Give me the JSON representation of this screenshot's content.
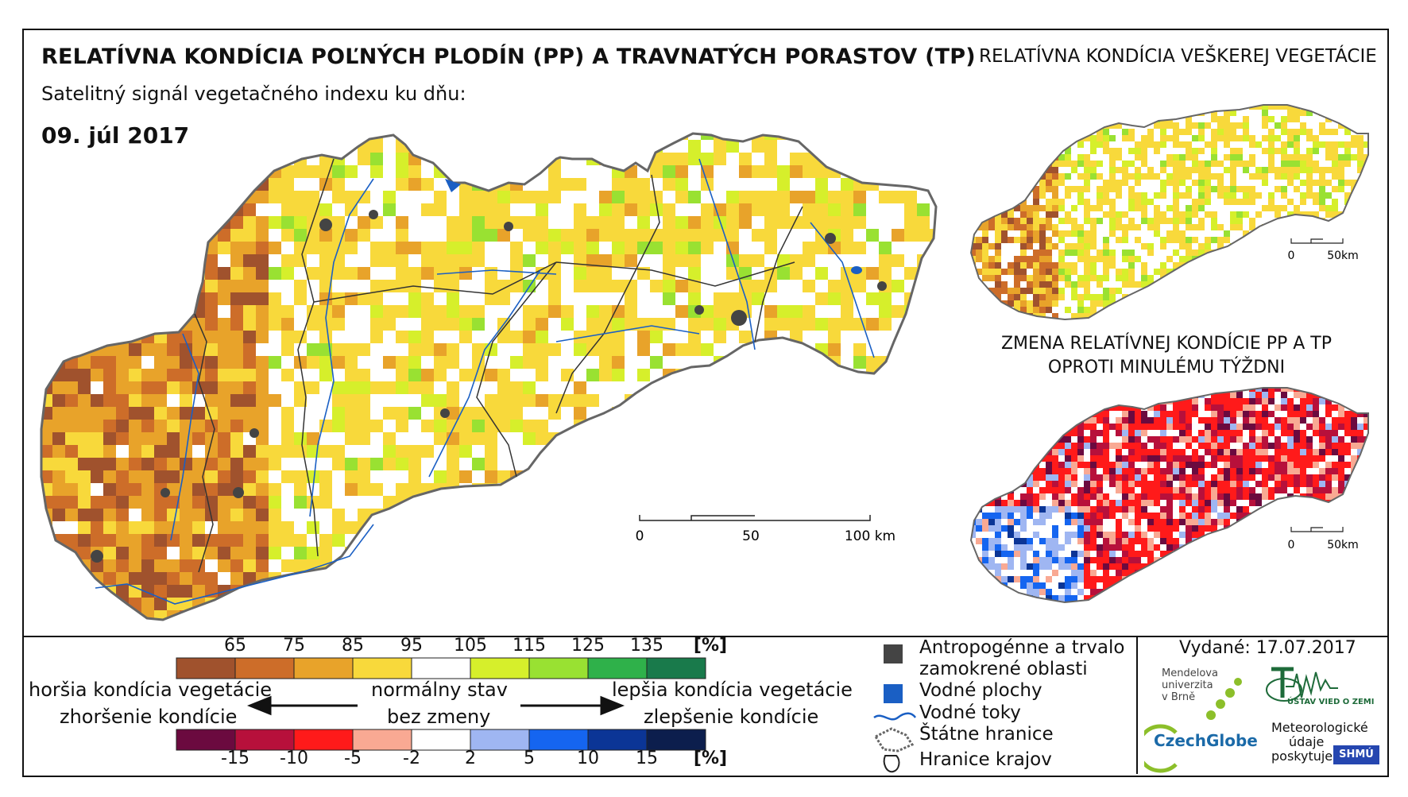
{
  "header": {
    "title": "RELATÍVNA KONDÍCIA POĽNÝCH PLODÍN (PP) A TRAVNATÝCH PORASTOV (TP)",
    "subtitle": "Satelitný signál vegetačného indexu ku dňu:",
    "date": "09. júl 2017"
  },
  "side_panel_top": {
    "title": "RELATÍVNA KONDÍCIA VEŠKEREJ VEGETÁCIE",
    "scale_labels": [
      "0",
      "50km"
    ]
  },
  "side_panel_bottom": {
    "title_line1": "ZMENA RELATÍVNEJ KONDÍCIE PP A TP",
    "title_line2": "OPROTI MINULÉMU TÝŽDNI",
    "scale_labels": [
      "0",
      "50km"
    ]
  },
  "main_scale": {
    "labels": [
      "0",
      "50",
      "100 km"
    ]
  },
  "legend": {
    "unit": "[%]",
    "condition_ticks": [
      "65",
      "75",
      "85",
      "95",
      "105",
      "115",
      "125",
      "135"
    ],
    "condition_colors": [
      "#a0522d",
      "#cd6d29",
      "#e8a32a",
      "#f8d93b",
      "#ffffff",
      "#d6ef2b",
      "#99e132",
      "#2fb14a",
      "#197a4b"
    ],
    "change_ticks": [
      "-15",
      "-10",
      "-5",
      "-2",
      "2",
      "5",
      "10",
      "15"
    ],
    "change_colors": [
      "#6b0a3f",
      "#b7103b",
      "#ff1a1a",
      "#f9a993",
      "#ffffff",
      "#9fb6f2",
      "#1565f0",
      "#0b3596",
      "#0c1e4d"
    ],
    "left_label_1": "horšia kondícia vegetácie",
    "left_label_2": "zhoršenie kondície",
    "center_label_1": "normálny stav",
    "center_label_2": "bez zmeny",
    "right_label_1": "lepšia kondícia vegetácie",
    "right_label_2": "zlepšenie kondície"
  },
  "map_legend": {
    "anthropogenic_line1": "Antropogénne a trvalo",
    "anthropogenic_line2": "zamokrené oblasti",
    "water_areas": "Vodné plochy",
    "rivers": "Vodné toky",
    "state_border": "Štátne hranice",
    "region_border": "Hranice krajov",
    "colors": {
      "anthropogenic": "#444444",
      "water": "#1a5fc4",
      "river": "#1a5fc4"
    }
  },
  "credits": {
    "issued": "Vydané: 17.07.2017",
    "mendelu_1": "Mendelova",
    "mendelu_2": "univerzita",
    "mendelu_3": "v Brně",
    "czechglobe": "CzechGlobe",
    "uvgz": "ÚSTAV VIED O ZEMI",
    "met_1": "Meteorologické",
    "met_2": "údaje",
    "met_3": "poskytuje:",
    "shmu": "SHMÚ"
  }
}
